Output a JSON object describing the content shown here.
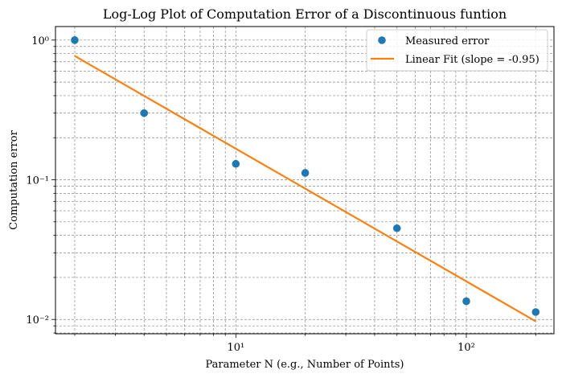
{
  "chart_data": {
    "type": "scatter",
    "title": "Log-Log Plot of Computation Error of a Discontinuous funtion",
    "xlabel": "Parameter N (e.g., Number of Points)",
    "ylabel": "Computation error",
    "xscale": "log",
    "yscale": "log",
    "xlim": [
      1.65,
      240
    ],
    "ylim": [
      0.0079,
      1.25
    ],
    "x_ticks": [
      {
        "value": 10,
        "label": "10¹"
      },
      {
        "value": 100,
        "label": "10²"
      }
    ],
    "y_ticks": [
      {
        "value": 0.01,
        "label": "10⁻²"
      },
      {
        "value": 0.1,
        "label": "10⁻¹"
      },
      {
        "value": 1,
        "label": "10⁰"
      }
    ],
    "grid": "both (major and minor)",
    "legend_position": "top-right",
    "series": [
      {
        "name": "Measured error",
        "kind": "scatter",
        "color": "#1f77b4",
        "x": [
          2,
          4,
          10,
          20,
          50,
          100,
          200
        ],
        "y": [
          1.0,
          0.3,
          0.13,
          0.112,
          0.045,
          0.0135,
          0.0113
        ]
      },
      {
        "name": "Linear Fit (slope = -0.95)",
        "kind": "line",
        "color": "#ff7f0e",
        "x": [
          2,
          200
        ],
        "y": [
          0.77,
          0.0097
        ]
      }
    ]
  }
}
